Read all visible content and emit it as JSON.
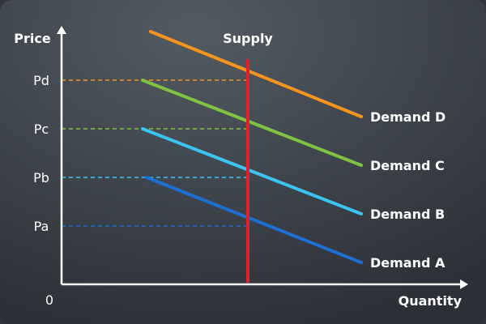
{
  "chart_data": {
    "type": "line",
    "title": "",
    "xlabel": "Quantity",
    "ylabel": "Price",
    "origin_label": "0",
    "xlim": [
      0,
      100
    ],
    "ylim": [
      0,
      100
    ],
    "price_levels": [
      {
        "label": "Pa",
        "value": 24,
        "color": "#1e6fd4"
      },
      {
        "label": "Pb",
        "value": 44,
        "color": "#3cc4f0"
      },
      {
        "label": "Pc",
        "value": 64,
        "color": "#80c342"
      },
      {
        "label": "Pd",
        "value": 84,
        "color": "#f7941d"
      }
    ],
    "supply": {
      "name": "Supply",
      "quantity": 46,
      "y_range": [
        0,
        100
      ],
      "color": "#e0202a"
    },
    "series": [
      {
        "name": "Demand A",
        "color": "#1e6fd4",
        "points": [
          [
            21,
            44
          ],
          [
            74,
            9
          ]
        ]
      },
      {
        "name": "Demand B",
        "color": "#3cc4f0",
        "points": [
          [
            20,
            64
          ],
          [
            74,
            29
          ]
        ]
      },
      {
        "name": "Demand C",
        "color": "#80c342",
        "points": [
          [
            20,
            84
          ],
          [
            74,
            49
          ]
        ]
      },
      {
        "name": "Demand D",
        "color": "#f7941d",
        "points": [
          [
            22,
            104
          ],
          [
            74,
            69
          ]
        ]
      }
    ]
  }
}
